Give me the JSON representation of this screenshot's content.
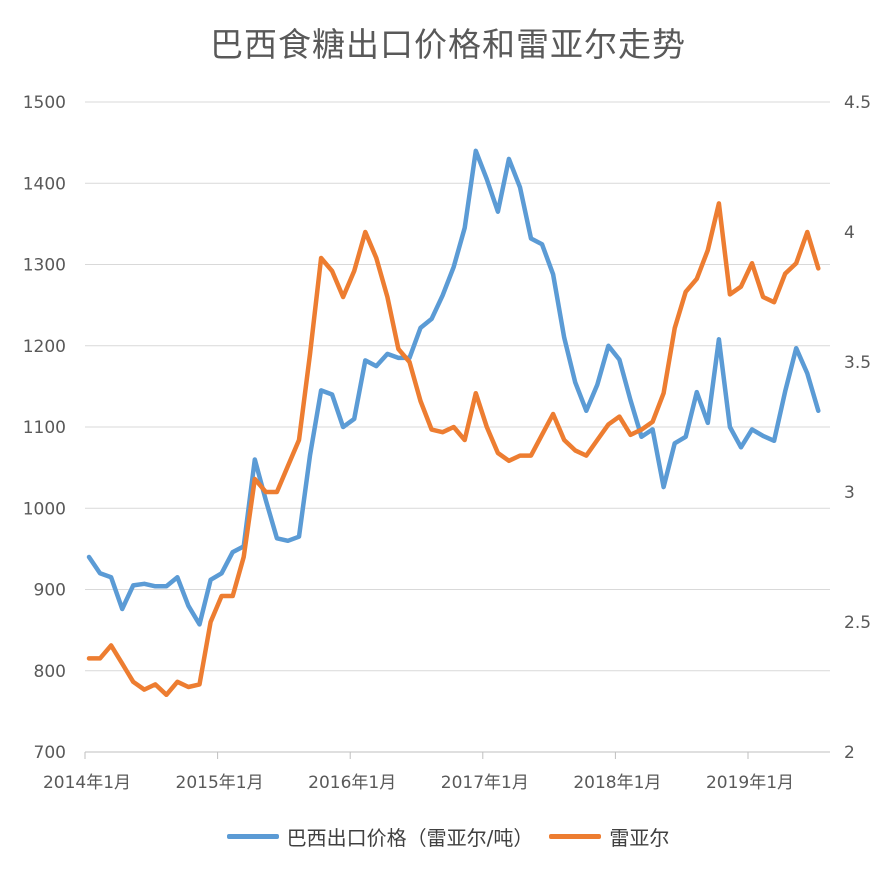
{
  "chart_data": {
    "type": "line",
    "title": "巴西食糖出口价格和雷亚尔走势",
    "x_tick_labels": [
      "2014年1月",
      "2015年1月",
      "2016年1月",
      "2017年1月",
      "2018年1月",
      "2019年1月"
    ],
    "left_axis": {
      "ylim": [
        700,
        1500
      ],
      "ticks": [
        700,
        800,
        900,
        1000,
        1100,
        1200,
        1300,
        1400,
        1500
      ]
    },
    "right_axis": {
      "ylim": [
        2,
        4.5
      ],
      "ticks": [
        "2",
        "2.5",
        "3",
        "3.5",
        "4",
        "4.5"
      ]
    },
    "grid": true,
    "legend_position": "bottom",
    "series": [
      {
        "name": "巴西出口价格（雷亚尔/吨）",
        "axis": "left",
        "color": "#5B9BD5",
        "values": [
          940,
          920,
          915,
          876,
          905,
          907,
          904,
          904,
          915,
          880,
          857,
          912,
          920,
          946,
          953,
          1060,
          1010,
          963,
          960,
          965,
          1065,
          1145,
          1140,
          1100,
          1110,
          1182,
          1175,
          1190,
          1185,
          1185,
          1222,
          1233,
          1262,
          1297,
          1345,
          1440,
          1405,
          1365,
          1430,
          1395,
          1332,
          1325,
          1288,
          1210,
          1155,
          1120,
          1152,
          1200,
          1183,
          1133,
          1088,
          1097,
          1026,
          1080,
          1088,
          1143,
          1105,
          1208,
          1100,
          1075,
          1097,
          1089,
          1083,
          1144,
          1197,
          1166,
          1120
        ]
      },
      {
        "name": "雷亚尔",
        "axis": "right",
        "color": "#ED7D31",
        "values": [
          2.36,
          2.36,
          2.41,
          2.34,
          2.27,
          2.24,
          2.26,
          2.22,
          2.27,
          2.25,
          2.26,
          2.5,
          2.6,
          2.6,
          2.75,
          3.05,
          3.0,
          3.0,
          3.1,
          3.2,
          3.53,
          3.9,
          3.85,
          3.75,
          3.85,
          4.0,
          3.9,
          3.75,
          3.55,
          3.5,
          3.35,
          3.24,
          3.23,
          3.25,
          3.2,
          3.38,
          3.25,
          3.15,
          3.12,
          3.14,
          3.14,
          3.22,
          3.3,
          3.2,
          3.16,
          3.14,
          3.2,
          3.26,
          3.29,
          3.22,
          3.24,
          3.27,
          3.38,
          3.63,
          3.77,
          3.82,
          3.93,
          4.11,
          3.76,
          3.79,
          3.88,
          3.75,
          3.73,
          3.84,
          3.88,
          4.0,
          3.86
        ]
      }
    ]
  }
}
